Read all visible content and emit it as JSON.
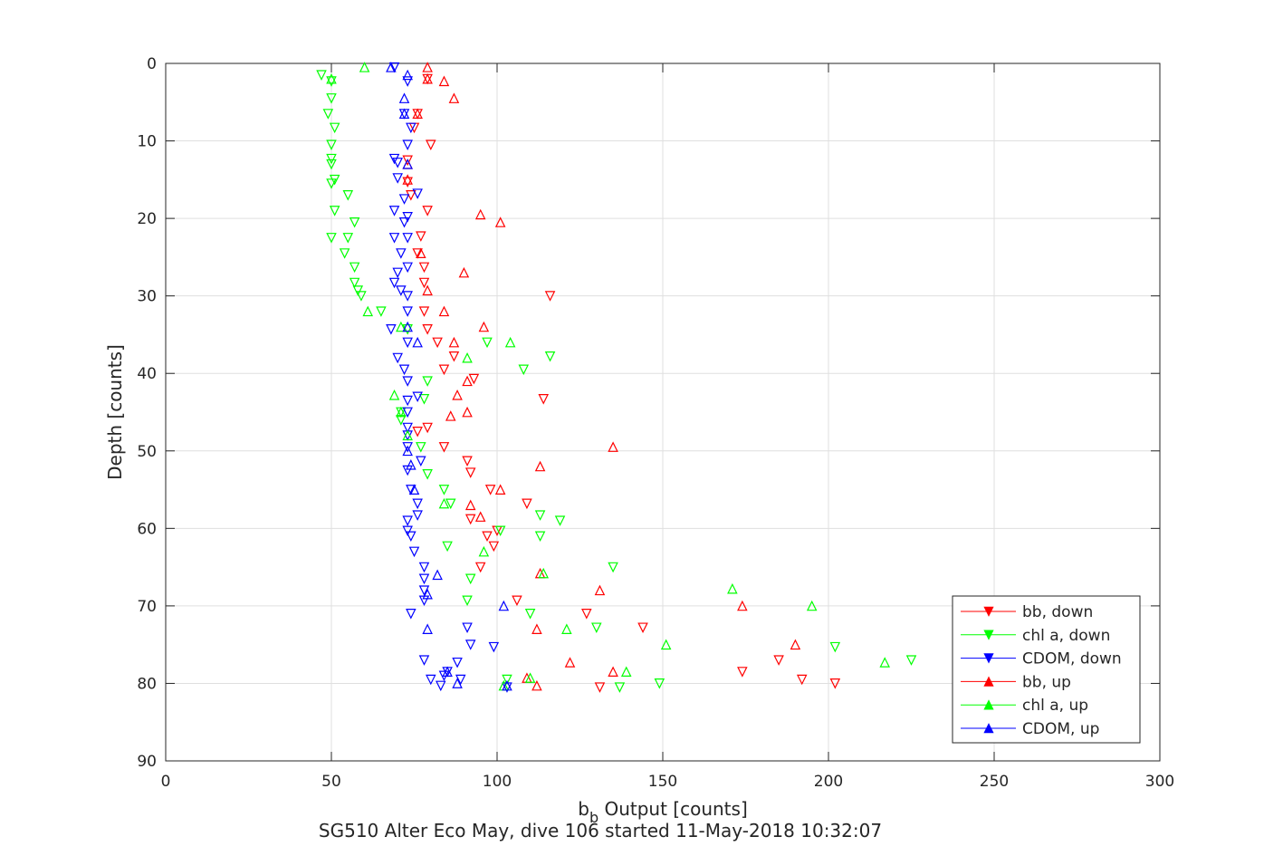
{
  "chart_data": {
    "type": "scatter",
    "title": "",
    "xlabel": "b",
    "xlabel_subscript": "b",
    "xlabel_rest": " Output [counts]",
    "ylabel": "Depth [counts]",
    "caption": "SG510 Alter Eco May, dive 106 started 11-May-2018 10:32:07",
    "xlim": [
      0,
      300
    ],
    "ylim": [
      0,
      90
    ],
    "y_reversed": true,
    "grid": true,
    "legend_position": "bottom-right",
    "xticks": [
      "0",
      "50",
      "100",
      "150",
      "200",
      "250",
      "300"
    ],
    "yticks": [
      "0",
      "10",
      "20",
      "30",
      "40",
      "50",
      "60",
      "70",
      "80",
      "90"
    ],
    "xtick_values": [
      0,
      50,
      100,
      150,
      200,
      250,
      300
    ],
    "ytick_values": [
      0,
      10,
      20,
      30,
      40,
      50,
      60,
      70,
      80,
      90
    ],
    "series": [
      {
        "name": "bb, down",
        "color": "#ff0000",
        "marker": "triangle-down",
        "points": [
          [
            79,
            2
          ],
          [
            76,
            6.5
          ],
          [
            75,
            8.3
          ],
          [
            80,
            10.5
          ],
          [
            73,
            12.5
          ],
          [
            73,
            15.3
          ],
          [
            74,
            17
          ],
          [
            79,
            19
          ],
          [
            77,
            22.3
          ],
          [
            76,
            24.5
          ],
          [
            78,
            26.3
          ],
          [
            78,
            28.3
          ],
          [
            116,
            30
          ],
          [
            78,
            32
          ],
          [
            79,
            34.3
          ],
          [
            82,
            36
          ],
          [
            87,
            37.8
          ],
          [
            84,
            39.5
          ],
          [
            93,
            40.7
          ],
          [
            114,
            43.3
          ],
          [
            79,
            47
          ],
          [
            76,
            47.5
          ],
          [
            84,
            49.5
          ],
          [
            91,
            51.3
          ],
          [
            92,
            52.8
          ],
          [
            98,
            55
          ],
          [
            109,
            56.8
          ],
          [
            92,
            58.8
          ],
          [
            100,
            60.3
          ],
          [
            97,
            61
          ],
          [
            99,
            62.3
          ],
          [
            95,
            65
          ],
          [
            106,
            69.3
          ],
          [
            127,
            71
          ],
          [
            144,
            72.8
          ],
          [
            174,
            78.5
          ],
          [
            185,
            77
          ],
          [
            192,
            79.5
          ],
          [
            202,
            80
          ],
          [
            131,
            80.5
          ]
        ]
      },
      {
        "name": "chl a, down",
        "color": "#00ff00",
        "marker": "triangle-down",
        "points": [
          [
            47,
            1.5
          ],
          [
            50,
            2.3
          ],
          [
            50,
            4.5
          ],
          [
            49,
            6.5
          ],
          [
            51,
            8.3
          ],
          [
            50,
            10.5
          ],
          [
            50,
            12.3
          ],
          [
            50,
            13
          ],
          [
            51,
            15
          ],
          [
            50,
            15.5
          ],
          [
            55,
            17
          ],
          [
            51,
            19
          ],
          [
            57,
            20.5
          ],
          [
            50,
            22.5
          ],
          [
            55,
            22.5
          ],
          [
            54,
            24.5
          ],
          [
            57,
            26.3
          ],
          [
            57,
            28.3
          ],
          [
            58,
            29.3
          ],
          [
            59,
            30
          ],
          [
            65,
            32
          ],
          [
            73,
            34.3
          ],
          [
            97,
            36
          ],
          [
            116,
            37.8
          ],
          [
            108,
            39.5
          ],
          [
            79,
            41
          ],
          [
            78,
            43.3
          ],
          [
            71,
            45
          ],
          [
            71,
            46
          ],
          [
            77,
            49.5
          ],
          [
            79,
            53
          ],
          [
            84,
            55
          ],
          [
            86,
            56.8
          ],
          [
            113,
            58.3
          ],
          [
            119,
            59
          ],
          [
            101,
            60.3
          ],
          [
            113,
            61
          ],
          [
            85,
            62.3
          ],
          [
            135,
            65
          ],
          [
            92,
            66.5
          ],
          [
            91,
            69.3
          ],
          [
            110,
            71
          ],
          [
            130,
            72.8
          ],
          [
            202,
            75.3
          ],
          [
            225,
            77
          ],
          [
            149,
            80
          ],
          [
            103,
            79.5
          ],
          [
            137,
            80.5
          ]
        ]
      },
      {
        "name": "CDOM, down",
        "color": "#0000ff",
        "marker": "triangle-down",
        "points": [
          [
            69,
            0.5
          ],
          [
            73,
            2.3
          ],
          [
            72,
            6.5
          ],
          [
            74,
            8.3
          ],
          [
            73,
            10.5
          ],
          [
            69,
            12.3
          ],
          [
            70,
            12.8
          ],
          [
            70,
            14.8
          ],
          [
            76,
            16.8
          ],
          [
            72,
            17.5
          ],
          [
            69,
            19
          ],
          [
            73,
            19.8
          ],
          [
            72,
            20.5
          ],
          [
            69,
            22.5
          ],
          [
            73,
            22.5
          ],
          [
            71,
            24.5
          ],
          [
            73,
            26.3
          ],
          [
            70,
            27
          ],
          [
            69,
            28.3
          ],
          [
            71,
            29.3
          ],
          [
            73,
            30
          ],
          [
            73,
            32
          ],
          [
            68,
            34.3
          ],
          [
            73,
            36
          ],
          [
            70,
            38
          ],
          [
            72,
            39.5
          ],
          [
            73,
            41
          ],
          [
            76,
            43
          ],
          [
            73,
            43.5
          ],
          [
            73,
            45
          ],
          [
            73,
            47
          ],
          [
            73,
            48
          ],
          [
            73,
            49.5
          ],
          [
            77,
            51.3
          ],
          [
            73,
            52.5
          ],
          [
            74,
            55
          ],
          [
            76,
            56.8
          ],
          [
            76,
            58.3
          ],
          [
            73,
            59
          ],
          [
            73,
            60.3
          ],
          [
            74,
            61
          ],
          [
            75,
            63
          ],
          [
            78,
            65
          ],
          [
            78,
            66.5
          ],
          [
            78,
            68
          ],
          [
            78,
            69.3
          ],
          [
            74,
            71
          ],
          [
            91,
            72.8
          ],
          [
            92,
            75
          ],
          [
            99,
            75.3
          ],
          [
            78,
            77
          ],
          [
            88,
            77.3
          ],
          [
            85,
            78.5
          ],
          [
            84,
            79
          ],
          [
            89,
            79.5
          ],
          [
            80,
            79.5
          ],
          [
            83,
            80.3
          ],
          [
            103,
            80.5
          ]
        ]
      },
      {
        "name": "bb, up",
        "color": "#ff0000",
        "marker": "triangle-up",
        "points": [
          [
            79,
            0.5
          ],
          [
            79,
            2
          ],
          [
            84,
            2.3
          ],
          [
            87,
            4.5
          ],
          [
            76,
            6.5
          ],
          [
            73,
            13
          ],
          [
            73,
            15
          ],
          [
            95,
            19.5
          ],
          [
            101,
            20.5
          ],
          [
            77,
            24.5
          ],
          [
            90,
            27
          ],
          [
            79,
            29.3
          ],
          [
            84,
            32
          ],
          [
            96,
            34
          ],
          [
            87,
            36
          ],
          [
            91,
            41
          ],
          [
            88,
            42.8
          ],
          [
            91,
            45
          ],
          [
            86,
            45.5
          ],
          [
            135,
            49.5
          ],
          [
            113,
            52
          ],
          [
            101,
            55
          ],
          [
            92,
            57
          ],
          [
            95,
            58.5
          ],
          [
            113,
            65.8
          ],
          [
            131,
            68
          ],
          [
            174,
            70
          ],
          [
            190,
            75
          ],
          [
            112,
            73
          ],
          [
            122,
            77.3
          ],
          [
            135,
            78.5
          ],
          [
            109,
            79.3
          ],
          [
            112,
            80.3
          ]
        ]
      },
      {
        "name": "chl a, up",
        "color": "#00ff00",
        "marker": "triangle-up",
        "points": [
          [
            60,
            0.5
          ],
          [
            50,
            2
          ],
          [
            61,
            32
          ],
          [
            71,
            34
          ],
          [
            104,
            36
          ],
          [
            91,
            38
          ],
          [
            69,
            42.8
          ],
          [
            71,
            45
          ],
          [
            73,
            48
          ],
          [
            84,
            56.8
          ],
          [
            96,
            63
          ],
          [
            114,
            65.8
          ],
          [
            171,
            67.8
          ],
          [
            195,
            70
          ],
          [
            121,
            73
          ],
          [
            151,
            75
          ],
          [
            217,
            77.3
          ],
          [
            139,
            78.5
          ],
          [
            110,
            79.3
          ],
          [
            102,
            80.3
          ]
        ]
      },
      {
        "name": "CDOM, up",
        "color": "#0000ff",
        "marker": "triangle-up",
        "points": [
          [
            68,
            0.5
          ],
          [
            73,
            1.5
          ],
          [
            72,
            4.5
          ],
          [
            72,
            6.5
          ],
          [
            73,
            13
          ],
          [
            73,
            34
          ],
          [
            76,
            36
          ],
          [
            73,
            50
          ],
          [
            74,
            51.8
          ],
          [
            75,
            55
          ],
          [
            82,
            66
          ],
          [
            79,
            68.5
          ],
          [
            102,
            70
          ],
          [
            79,
            73
          ],
          [
            85,
            78.5
          ],
          [
            88,
            80
          ],
          [
            103,
            80.3
          ]
        ]
      }
    ]
  }
}
